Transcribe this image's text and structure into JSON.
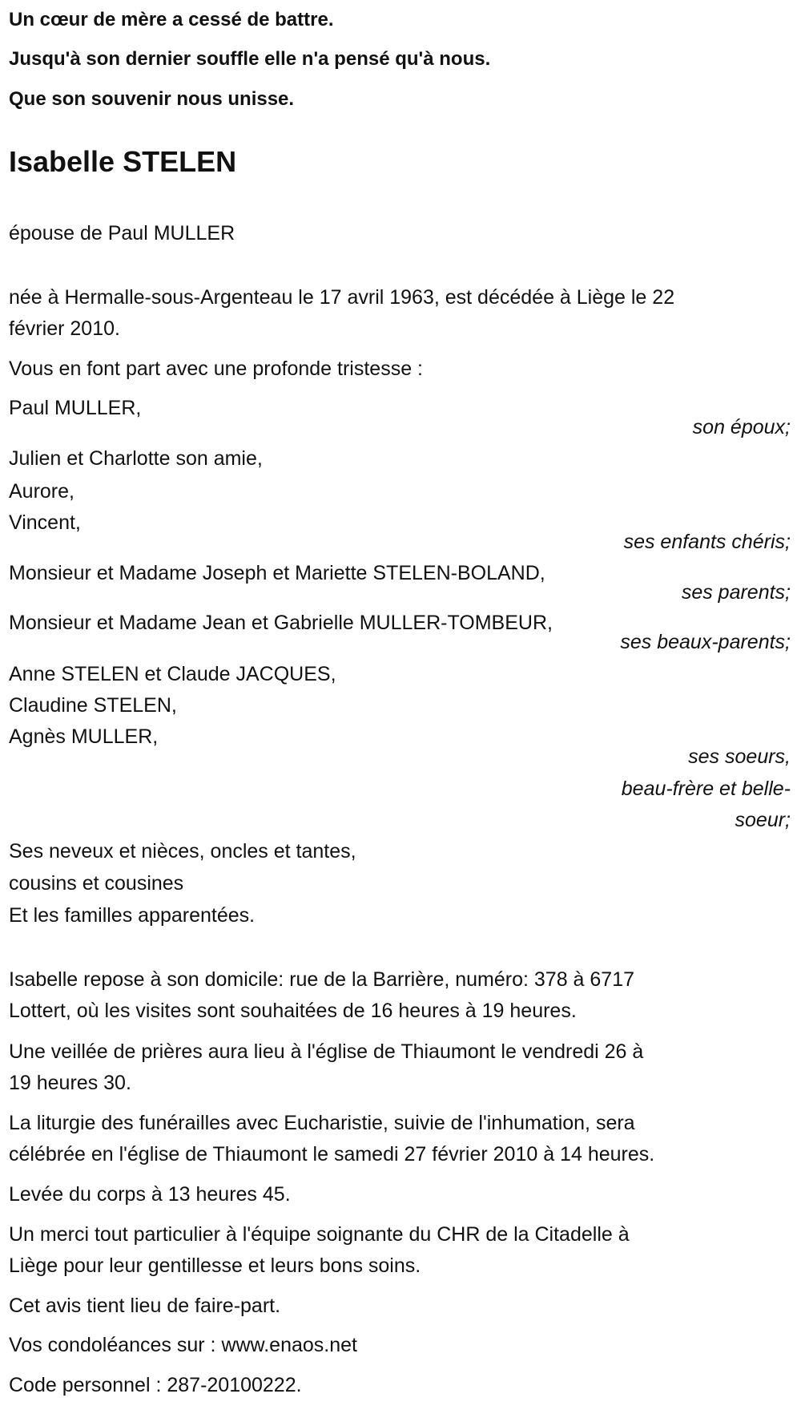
{
  "epigraph": [
    "Un cœur de mère a cessé de battre.",
    "Jusqu'à son dernier souffle elle n'a pensé qu'à nous.",
    "Que son souvenir nous unisse."
  ],
  "name": "Isabelle STELEN",
  "spouse_line": "épouse de Paul MULLER",
  "birth_death": [
    "née à Hermalle-sous-Argenteau le 17 avril 1963, est décédée à Liège le 22",
    "février 2010."
  ],
  "announce": "Vous en font part avec une profonde tristesse :",
  "family": {
    "husband": "Paul MULLER,",
    "husband_role": "son époux;",
    "children": [
      "Julien et Charlotte son amie,",
      "Aurore,",
      "Vincent,"
    ],
    "children_role": "ses enfants chéris;",
    "parents": "Monsieur et Madame Joseph et Mariette STELEN-BOLAND,",
    "parents_role": "ses parents;",
    "inlaws": "Monsieur et Madame Jean et Gabrielle MULLER-TOMBEUR,",
    "inlaws_role": "ses beaux-parents;",
    "siblings": [
      "Anne STELEN et Claude JACQUES,",
      "Claudine STELEN,",
      "Agnès MULLER,"
    ],
    "siblings_role": [
      "ses soeurs,",
      "beau-frère et belle-",
      "soeur;"
    ],
    "others": [
      "Ses neveux et nièces, oncles et tantes,",
      "cousins et cousines",
      "Et les familles apparentées."
    ]
  },
  "details": {
    "repose": [
      "Isabelle repose à son domicile: rue de la Barrière, numéro: 378 à 6717",
      "Lottert, où les visites sont souhaitées de 16 heures à 19 heures."
    ],
    "vigil": [
      "Une veillée de prières aura lieu à l'église de Thiaumont le vendredi 26 à",
      "19 heures 30."
    ],
    "liturgy": [
      "La liturgie des funérailles avec Eucharistie, suivie de l'inhumation, sera",
      "célébrée en l'église de Thiaumont le samedi 27 février 2010 à 14 heures."
    ],
    "levee": "Levée du corps à 13 heures 45.",
    "thanks": [
      "Un merci tout particulier à l'équipe soignante du CHR de la Citadelle à",
      "Liège pour leur gentillesse et leurs bons soins."
    ],
    "notice": "Cet avis tient lieu de faire-part.",
    "condolences": "Vos condoléances sur : www.enaos.net",
    "code": "Code personnel : 287-20100222."
  }
}
